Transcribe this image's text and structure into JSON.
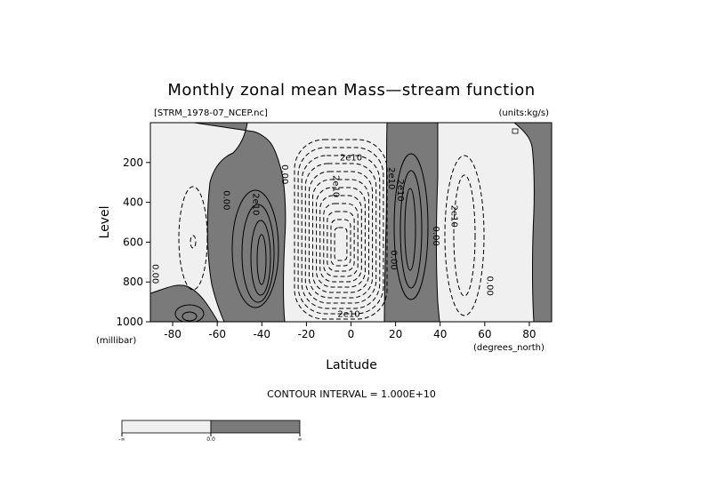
{
  "chart_data": {
    "type": "contour",
    "title": "Monthly zonal mean Mass—stream function",
    "subtitle_left": "[STRM_1978-07_NCEP.nc]",
    "subtitle_right": "(units:kg/s)",
    "xlabel": "Latitude",
    "ylabel": "Level",
    "x_unit": "(degrees_north)",
    "y_unit": "(millibar)",
    "xlim": [
      -90,
      90
    ],
    "ylim": [
      1000,
      0
    ],
    "x_ticks": [
      -80,
      -60,
      -40,
      -20,
      0,
      20,
      40,
      60,
      80
    ],
    "y_ticks": [
      200,
      400,
      600,
      800,
      1000
    ],
    "contour_interval_text": "CONTOUR INTERVAL = 1.000E+10",
    "colors": {
      "negative": "#f0f0f0",
      "positive": "#7a7a7a",
      "background": "#ffffff"
    },
    "contour_labels": [
      {
        "text": "0.00",
        "lat": -57,
        "lev": 390,
        "rotate": 90
      },
      {
        "text": "0.00",
        "lat": -31,
        "lev": 260,
        "rotate": 90
      },
      {
        "text": "2e10",
        "lat": -44,
        "lev": 410,
        "rotate": 90
      },
      {
        "text": "0.00",
        "lat": -89,
        "lev": 760,
        "rotate": 90
      },
      {
        "text": "2e10",
        "lat": -8,
        "lev": 320,
        "rotate": 90
      },
      {
        "text": "2e10",
        "lat": 17,
        "lev": 280,
        "rotate": 90
      },
      {
        "text": "2e10",
        "lat": 0,
        "lev": 190,
        "rotate": 0
      },
      {
        "text": "0.00",
        "lat": 18,
        "lev": 690,
        "rotate": 90
      },
      {
        "text": "2e10",
        "lat": 21,
        "lev": 340,
        "rotate": 90
      },
      {
        "text": "0.00",
        "lat": 37,
        "lev": 570,
        "rotate": 90
      },
      {
        "text": "2e10",
        "lat": 45,
        "lev": 470,
        "rotate": 90
      },
      {
        "text": "0.00",
        "lat": 61,
        "lev": 820,
        "rotate": 90
      },
      {
        "text": "2e10",
        "lat": -1,
        "lev": 975,
        "rotate": 0
      }
    ],
    "colorbar_labels": [
      "-∞",
      "0.0",
      "∞"
    ]
  }
}
